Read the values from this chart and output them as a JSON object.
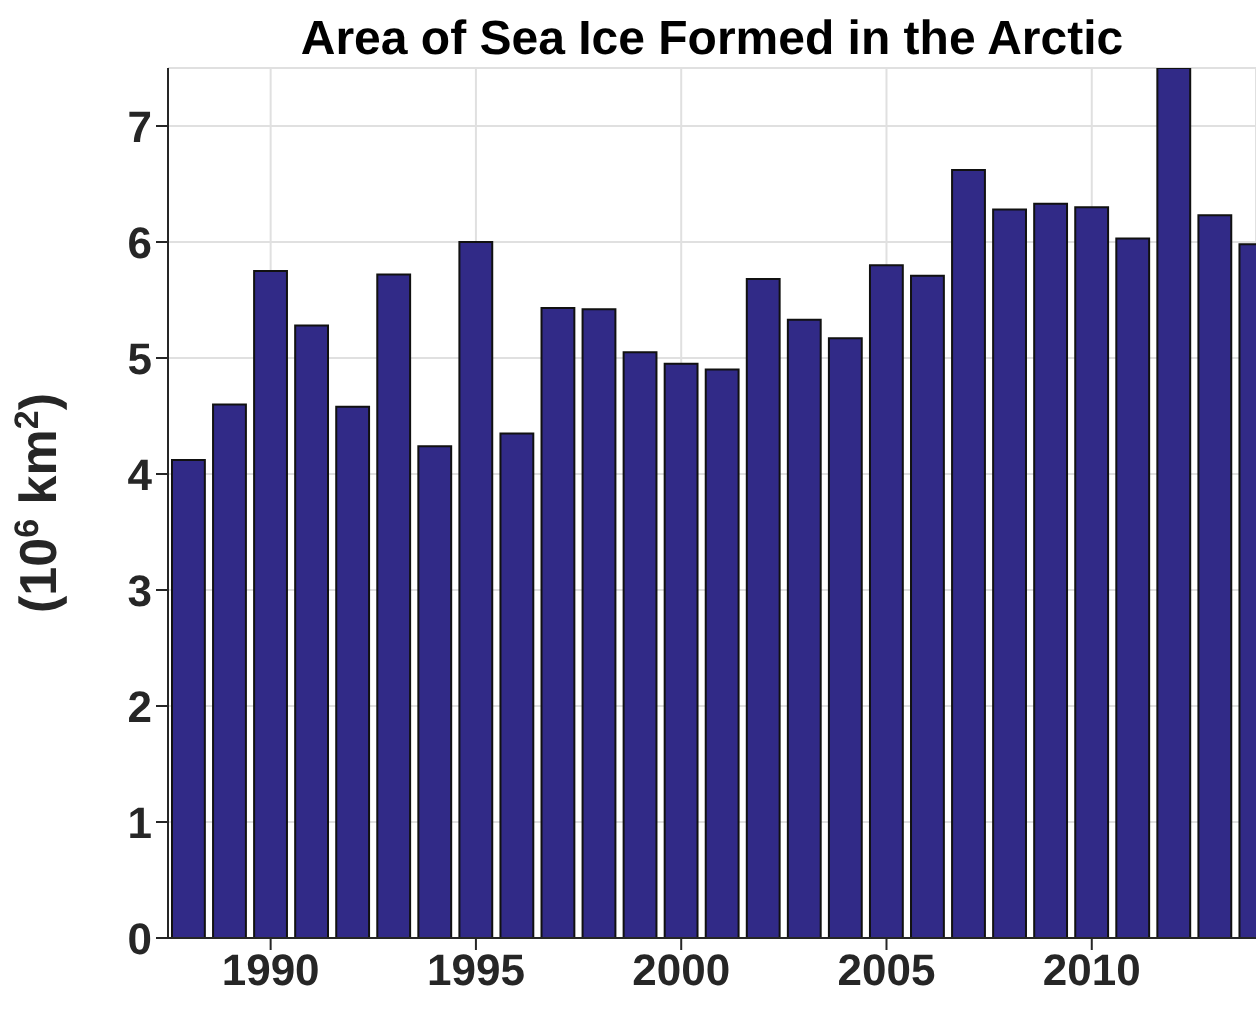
{
  "chart_data": {
    "type": "bar",
    "title": "Area of Sea Ice Formed in the Arctic",
    "ylabel": "(10$^{6}$ km$^{2}$)",
    "x": [
      1988,
      1989,
      1990,
      1991,
      1992,
      1993,
      1994,
      1995,
      1996,
      1997,
      1998,
      1999,
      2000,
      2001,
      2002,
      2003,
      2004,
      2005,
      2006,
      2007,
      2008,
      2009,
      2010,
      2011,
      2012,
      2013,
      2014
    ],
    "values": [
      4.12,
      4.6,
      5.75,
      5.28,
      4.58,
      5.72,
      4.24,
      6.0,
      4.35,
      5.43,
      5.42,
      5.05,
      4.95,
      4.9,
      5.68,
      5.33,
      5.17,
      5.8,
      5.71,
      6.62,
      6.28,
      6.33,
      6.3,
      6.03,
      7.5,
      6.23,
      5.98
    ],
    "color": "#312a87",
    "xlim": [
      1987.5,
      2014
    ],
    "xticks": [
      1990,
      1995,
      2000,
      2005,
      2010
    ],
    "ylim": [
      0,
      7.5
    ],
    "yticks": [
      0,
      1,
      2,
      3,
      4,
      5,
      6,
      7
    ],
    "grid": true
  }
}
